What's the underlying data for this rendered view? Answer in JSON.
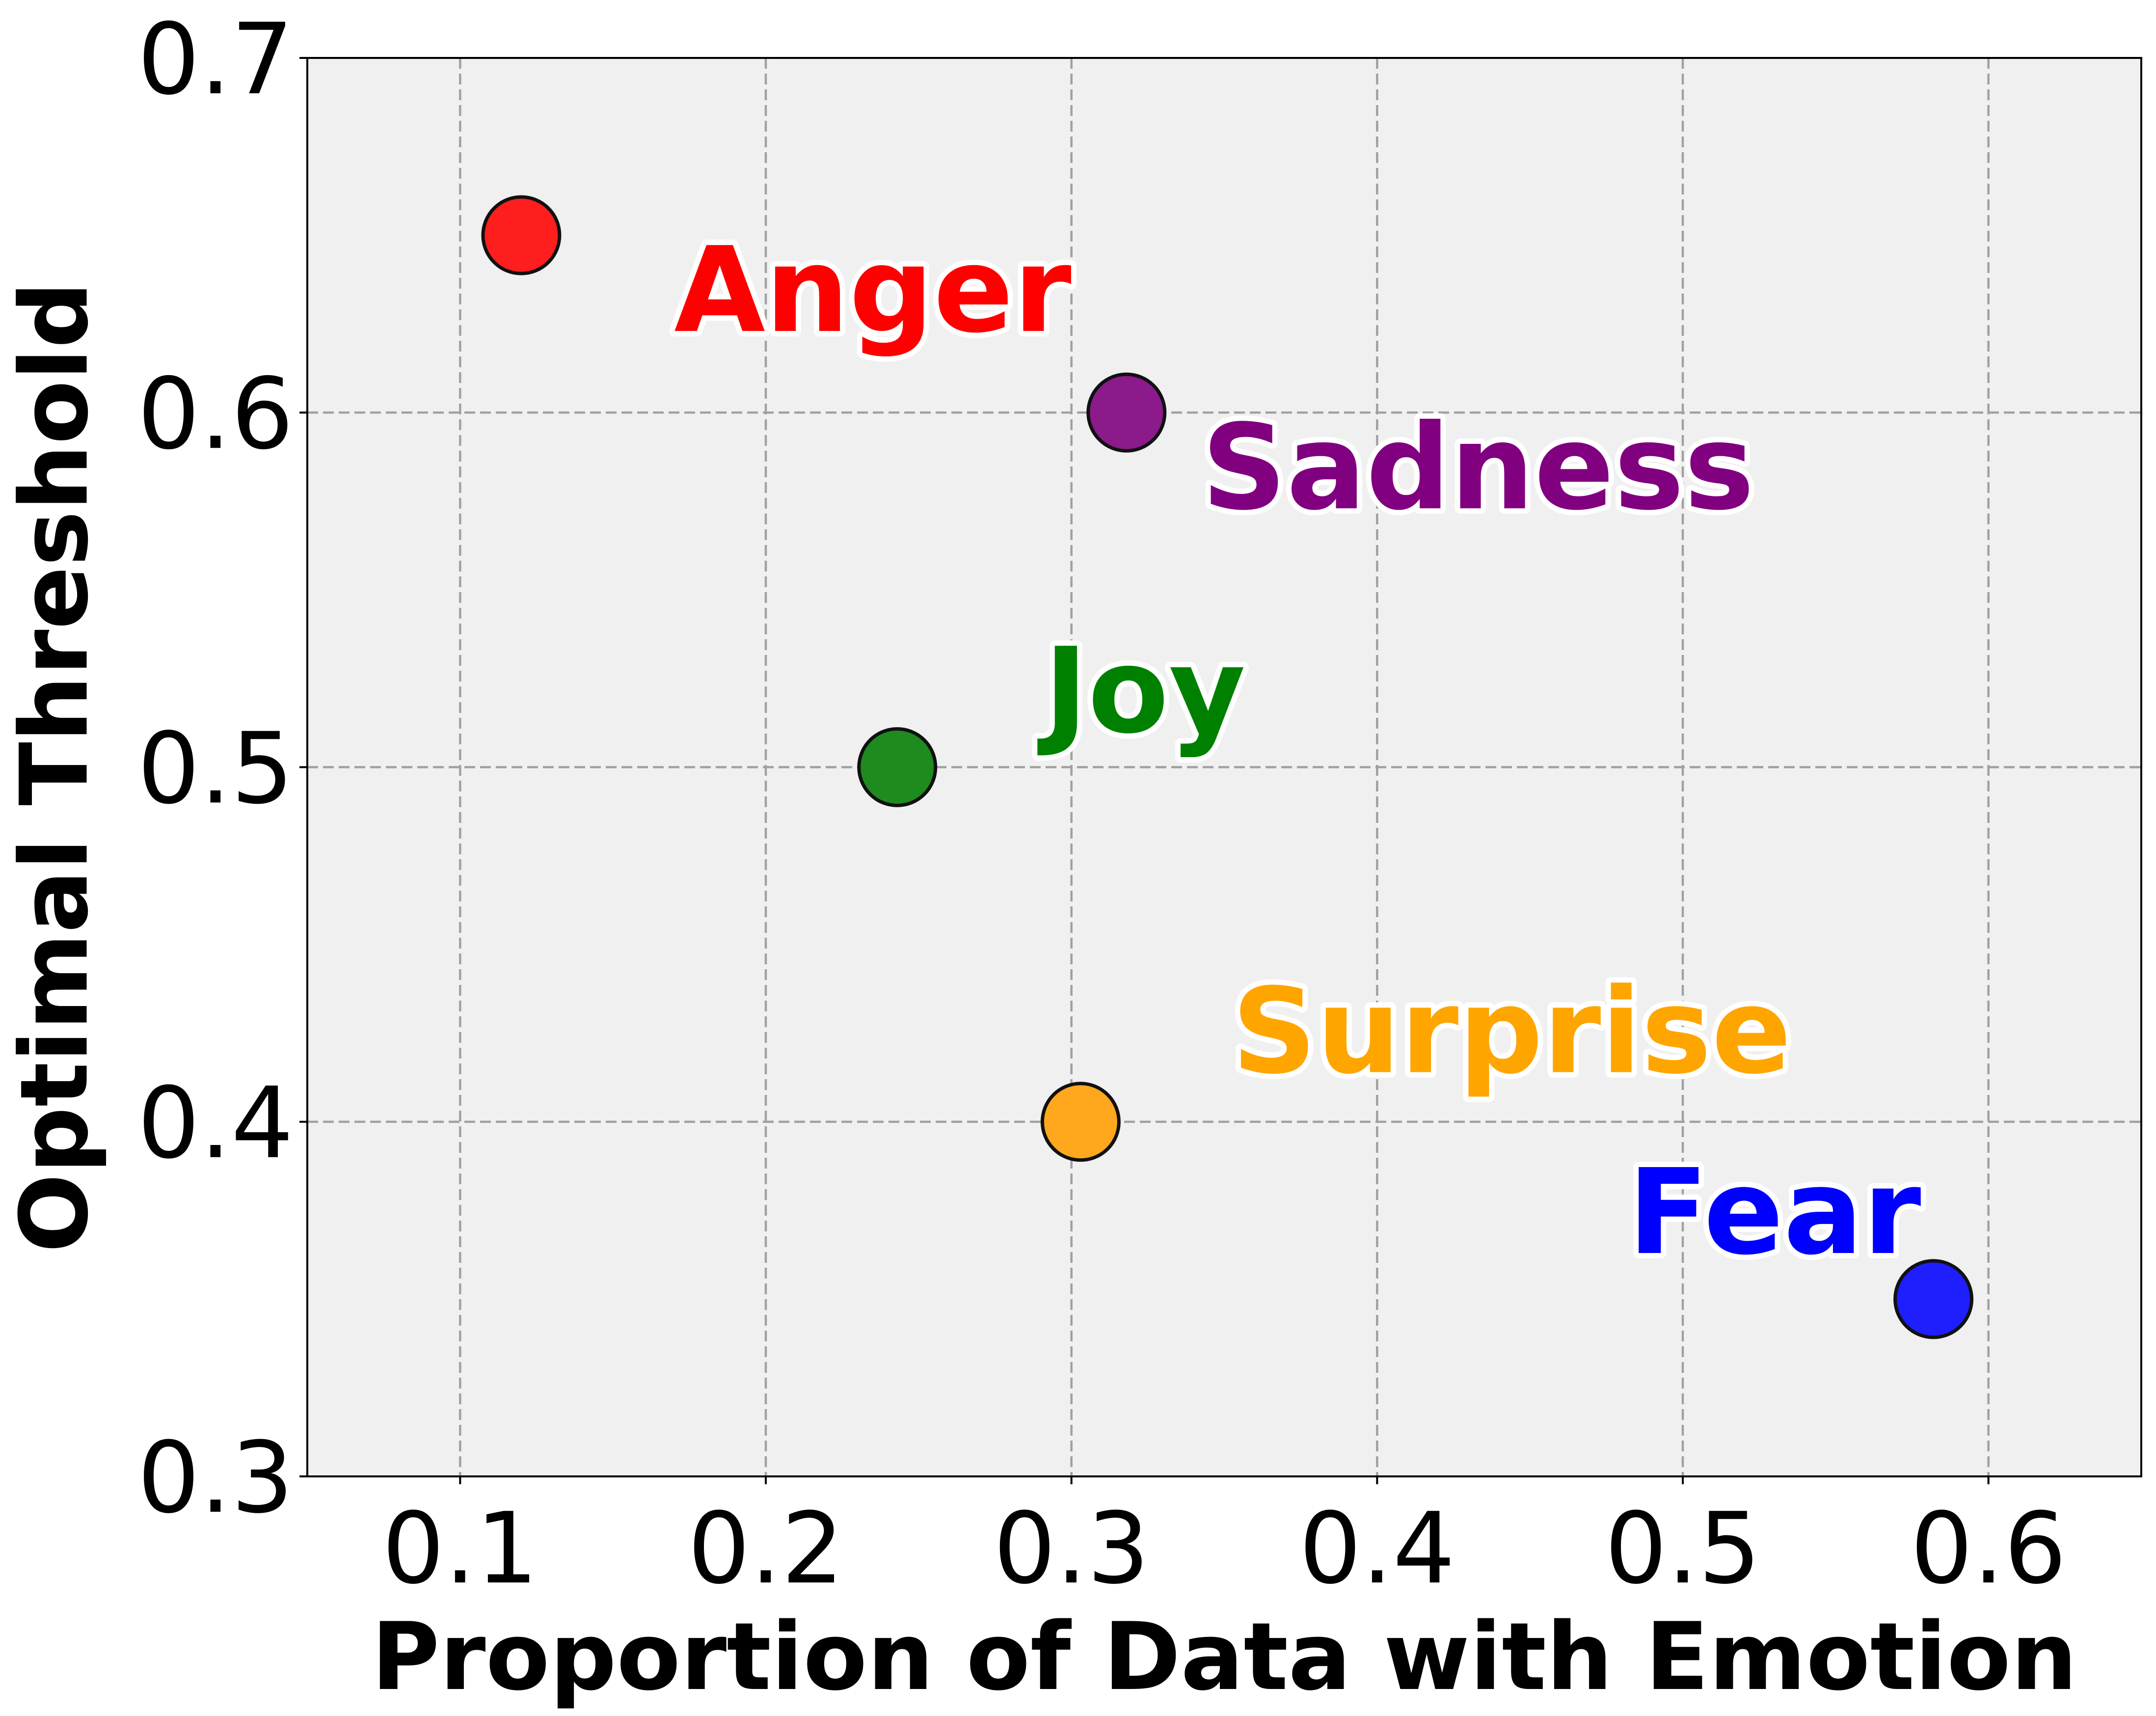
{
  "chart_data": {
    "type": "scatter",
    "title": "",
    "xlabel": "Proportion of Data with Emotion",
    "ylabel": "Optimal Threshold",
    "xlim": [
      0.05,
      0.65
    ],
    "ylim": [
      0.3,
      0.7
    ],
    "x_ticks": [
      0.1,
      0.2,
      0.3,
      0.4,
      0.5,
      0.6
    ],
    "x_tick_labels": [
      "0.1",
      "0.2",
      "0.3",
      "0.4",
      "0.5",
      "0.6"
    ],
    "y_ticks": [
      0.3,
      0.4,
      0.5,
      0.6,
      0.7
    ],
    "y_tick_labels": [
      "0.3",
      "0.4",
      "0.5",
      "0.6",
      "0.7"
    ],
    "grid": true,
    "background_color": "#f0f0f0",
    "points": [
      {
        "label": "Anger",
        "x": 0.12,
        "y": 0.65,
        "color": "#ff1e1e",
        "label_color": "#ff0000",
        "label_x": 0.235,
        "label_y": 0.623
      },
      {
        "label": "Sadness",
        "x": 0.318,
        "y": 0.6,
        "color": "#8b1a8b",
        "label_x": 0.433,
        "label_y": 0.573,
        "label_color": "#800080"
      },
      {
        "label": "Joy",
        "x": 0.243,
        "y": 0.5,
        "color": "#1e8b1e",
        "label_x": 0.324,
        "label_y": 0.51,
        "label_color": "#008000"
      },
      {
        "label": "Surprise",
        "x": 0.303,
        "y": 0.4,
        "color": "#ffa81e",
        "label_x": 0.444,
        "label_y": 0.414,
        "label_color": "#ffa500"
      },
      {
        "label": "Fear",
        "x": 0.582,
        "y": 0.35,
        "color": "#1e1eff",
        "label_x": 0.53,
        "label_y": 0.363,
        "label_color": "#0000ff"
      }
    ]
  }
}
